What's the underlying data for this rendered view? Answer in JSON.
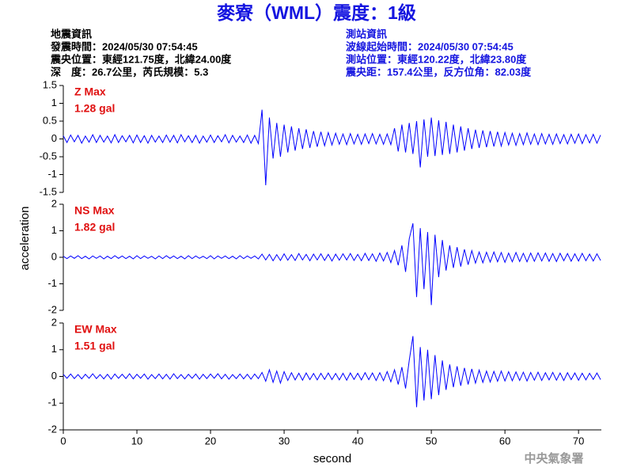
{
  "header": {
    "title": "麥寮（WML）震度：1級",
    "left": [
      "地震資訊",
      "發震時間：2024/05/30 07:54:45",
      "震央位置：東經121.75度，北緯24.00度",
      "深　度：26.7公里，芮氏規模：5.3"
    ],
    "right": [
      "測站資訊",
      "波線起始時間：2024/05/30 07:54:45",
      "測站位置：東經120.22度，北緯23.80度",
      "震央距：157.4公里，反方位角：82.03度"
    ]
  },
  "footer": "中央氣象署",
  "chart_data": [
    {
      "type": "line",
      "annotations": [
        "Z Max",
        "1.28 gal"
      ],
      "xlim": [
        0,
        73.1
      ],
      "ylim": [
        -1.5,
        1.5
      ],
      "yticks": [
        -1.5,
        -1,
        -0.5,
        0,
        0.5,
        1,
        1.5
      ],
      "x": [
        0,
        0.5,
        1,
        1.5,
        2,
        2.5,
        3,
        3.5,
        4,
        4.5,
        5,
        5.5,
        6,
        6.5,
        7,
        7.5,
        8,
        8.5,
        9,
        9.5,
        10,
        10.5,
        11,
        11.5,
        12,
        12.5,
        13,
        13.5,
        14,
        14.5,
        15,
        15.5,
        16,
        16.5,
        17,
        17.5,
        18,
        18.5,
        19,
        19.5,
        20,
        20.5,
        21,
        21.5,
        22,
        22.5,
        23,
        23.5,
        24,
        24.5,
        25,
        25.5,
        26,
        26.5,
        27,
        27.5,
        28,
        28.5,
        29,
        29.5,
        30,
        30.5,
        31,
        31.5,
        32,
        32.5,
        33,
        33.5,
        34,
        34.5,
        35,
        35.5,
        36,
        36.5,
        37,
        37.5,
        38,
        38.5,
        39,
        39.5,
        40,
        40.5,
        41,
        41.5,
        42,
        42.5,
        43,
        43.5,
        44,
        44.5,
        45,
        45.5,
        46,
        46.5,
        47,
        47.5,
        48,
        48.5,
        49,
        49.5,
        50,
        50.5,
        51,
        51.5,
        52,
        52.5,
        53,
        53.5,
        54,
        54.5,
        55,
        55.5,
        56,
        56.5,
        57,
        57.5,
        58,
        58.5,
        59,
        59.5,
        60,
        60.5,
        61,
        61.5,
        62,
        62.5,
        63,
        63.5,
        64,
        64.5,
        65,
        65.5,
        66,
        66.5,
        67,
        67.5,
        68,
        68.5,
        69,
        69.5,
        70,
        70.5,
        71,
        71.5,
        72,
        72.5,
        73
      ],
      "series": [
        {
          "color": "#0000ff",
          "values": [
            0.09,
            -0.1,
            0.11,
            -0.08,
            0.1,
            -0.12,
            0.08,
            -0.09,
            0.12,
            -0.1,
            0.1,
            -0.09,
            0.08,
            -0.11,
            0.12,
            -0.1,
            0.09,
            -0.08,
            0.1,
            -0.11,
            0.11,
            -0.1,
            0.09,
            -0.12,
            0.1,
            -0.09,
            0.08,
            -0.1,
            0.11,
            -0.09,
            0.1,
            -0.11,
            0.12,
            -0.08,
            0.09,
            -0.1,
            0.1,
            -0.12,
            0.08,
            -0.09,
            0.11,
            -0.1,
            0.09,
            -0.08,
            0.12,
            -0.11,
            0.1,
            -0.09,
            0.08,
            -0.1,
            0.11,
            -0.12,
            0.1,
            -0.13,
            0.82,
            -1.3,
            0.6,
            -0.55,
            0.45,
            -0.5,
            0.4,
            -0.38,
            0.35,
            -0.33,
            0.3,
            -0.28,
            0.27,
            -0.25,
            0.22,
            -0.22,
            0.2,
            -0.19,
            0.18,
            -0.17,
            0.16,
            -0.15,
            0.14,
            -0.16,
            0.15,
            -0.14,
            0.13,
            -0.15,
            0.14,
            -0.13,
            0.15,
            -0.14,
            0.13,
            -0.15,
            0.14,
            -0.16,
            0.3,
            -0.35,
            0.4,
            -0.38,
            0.45,
            -0.42,
            0.5,
            -0.8,
            0.55,
            -0.5,
            0.6,
            -0.48,
            0.52,
            -0.45,
            0.48,
            -0.42,
            0.4,
            -0.38,
            0.35,
            -0.33,
            0.3,
            -0.28,
            0.26,
            -0.25,
            0.24,
            -0.23,
            0.22,
            -0.21,
            0.2,
            -0.2,
            0.18,
            -0.17,
            0.16,
            -0.18,
            0.15,
            -0.16,
            0.17,
            -0.15,
            0.14,
            -0.16,
            0.15,
            -0.14,
            0.13,
            -0.15,
            0.14,
            -0.13,
            0.12,
            -0.14,
            0.13,
            -0.12,
            0.14,
            -0.13,
            0.12,
            -0.11,
            0.13,
            -0.12,
            0.11
          ]
        }
      ]
    },
    {
      "type": "line",
      "annotations": [
        "NS Max",
        "1.82 gal"
      ],
      "ylabel": "acceleration",
      "xlim": [
        0,
        73.1
      ],
      "ylim": [
        -2,
        2
      ],
      "yticks": [
        -2,
        -1,
        0,
        1,
        2
      ],
      "x": [
        0,
        0.5,
        1,
        1.5,
        2,
        2.5,
        3,
        3.5,
        4,
        4.5,
        5,
        5.5,
        6,
        6.5,
        7,
        7.5,
        8,
        8.5,
        9,
        9.5,
        10,
        10.5,
        11,
        11.5,
        12,
        12.5,
        13,
        13.5,
        14,
        14.5,
        15,
        15.5,
        16,
        16.5,
        17,
        17.5,
        18,
        18.5,
        19,
        19.5,
        20,
        20.5,
        21,
        21.5,
        22,
        22.5,
        23,
        23.5,
        24,
        24.5,
        25,
        25.5,
        26,
        26.5,
        27,
        27.5,
        28,
        28.5,
        29,
        29.5,
        30,
        30.5,
        31,
        31.5,
        32,
        32.5,
        33,
        33.5,
        34,
        34.5,
        35,
        35.5,
        36,
        36.5,
        37,
        37.5,
        38,
        38.5,
        39,
        39.5,
        40,
        40.5,
        41,
        41.5,
        42,
        42.5,
        43,
        43.5,
        44,
        44.5,
        45,
        45.5,
        46,
        46.5,
        47,
        47.5,
        48,
        48.5,
        49,
        49.5,
        50,
        50.5,
        51,
        51.5,
        52,
        52.5,
        53,
        53.5,
        54,
        54.5,
        55,
        55.5,
        56,
        56.5,
        57,
        57.5,
        58,
        58.5,
        59,
        59.5,
        60,
        60.5,
        61,
        61.5,
        62,
        62.5,
        63,
        63.5,
        64,
        64.5,
        65,
        65.5,
        66,
        66.5,
        67,
        67.5,
        68,
        68.5,
        69,
        69.5,
        70,
        70.5,
        71,
        71.5,
        72,
        72.5,
        73
      ],
      "series": [
        {
          "color": "#0000ff",
          "values": [
            0.04,
            -0.05,
            0.05,
            -0.04,
            0.06,
            -0.05,
            0.04,
            -0.06,
            0.05,
            -0.04,
            0.05,
            -0.06,
            0.04,
            -0.05,
            0.06,
            -0.04,
            0.05,
            -0.05,
            0.04,
            -0.06,
            0.06,
            -0.05,
            0.05,
            -0.04,
            0.04,
            -0.06,
            0.05,
            -0.05,
            0.06,
            -0.04,
            0.05,
            -0.05,
            0.04,
            -0.06,
            0.06,
            -0.05,
            0.05,
            -0.04,
            0.04,
            -0.05,
            0.06,
            -0.06,
            0.05,
            -0.04,
            0.05,
            -0.05,
            0.04,
            -0.06,
            0.06,
            -0.05,
            0.05,
            -0.04,
            0.05,
            -0.06,
            0.12,
            -0.1,
            0.11,
            -0.13,
            0.1,
            -0.12,
            0.13,
            -0.11,
            0.1,
            -0.12,
            0.14,
            -0.1,
            0.11,
            -0.13,
            0.12,
            -0.1,
            0.13,
            -0.12,
            0.11,
            -0.14,
            0.12,
            -0.11,
            0.13,
            -0.1,
            0.14,
            -0.12,
            0.11,
            -0.13,
            0.15,
            -0.12,
            0.13,
            -0.15,
            0.16,
            -0.14,
            0.18,
            -0.2,
            0.25,
            -0.3,
            0.45,
            -0.55,
            0.7,
            1.28,
            -1.5,
            1.1,
            -1.2,
            0.95,
            -1.8,
            0.85,
            -0.75,
            0.65,
            -0.5,
            0.45,
            -0.4,
            0.38,
            -0.35,
            0.3,
            -0.28,
            0.25,
            -0.22,
            0.2,
            -0.21,
            0.19,
            -0.18,
            0.2,
            -0.17,
            0.18,
            -0.19,
            0.16,
            -0.17,
            0.18,
            -0.16,
            0.15,
            -0.17,
            0.16,
            -0.15,
            0.17,
            -0.14,
            0.16,
            -0.15,
            0.14,
            -0.16,
            0.15,
            -0.13,
            0.14,
            -0.15,
            0.13,
            -0.14,
            0.15,
            -0.13,
            0.12,
            -0.14,
            0.13,
            -0.12
          ]
        }
      ]
    },
    {
      "type": "line",
      "annotations": [
        "EW Max",
        "1.51 gal"
      ],
      "xlabel": "second",
      "xlim": [
        0,
        73.1
      ],
      "ylim": [
        -2,
        2
      ],
      "yticks": [
        -2,
        -1,
        0,
        1,
        2
      ],
      "xticks": [
        0,
        10,
        20,
        30,
        40,
        50,
        60,
        70
      ],
      "x": [
        0,
        0.5,
        1,
        1.5,
        2,
        2.5,
        3,
        3.5,
        4,
        4.5,
        5,
        5.5,
        6,
        6.5,
        7,
        7.5,
        8,
        8.5,
        9,
        9.5,
        10,
        10.5,
        11,
        11.5,
        12,
        12.5,
        13,
        13.5,
        14,
        14.5,
        15,
        15.5,
        16,
        16.5,
        17,
        17.5,
        18,
        18.5,
        19,
        19.5,
        20,
        20.5,
        21,
        21.5,
        22,
        22.5,
        23,
        23.5,
        24,
        24.5,
        25,
        25.5,
        26,
        26.5,
        27,
        27.5,
        28,
        28.5,
        29,
        29.5,
        30,
        30.5,
        31,
        31.5,
        32,
        32.5,
        33,
        33.5,
        34,
        34.5,
        35,
        35.5,
        36,
        36.5,
        37,
        37.5,
        38,
        38.5,
        39,
        39.5,
        40,
        40.5,
        41,
        41.5,
        42,
        42.5,
        43,
        43.5,
        44,
        44.5,
        45,
        45.5,
        46,
        46.5,
        47,
        47.5,
        48,
        48.5,
        49,
        49.5,
        50,
        50.5,
        51,
        51.5,
        52,
        52.5,
        53,
        53.5,
        54,
        54.5,
        55,
        55.5,
        56,
        56.5,
        57,
        57.5,
        58,
        58.5,
        59,
        59.5,
        60,
        60.5,
        61,
        61.5,
        62,
        62.5,
        63,
        63.5,
        64,
        64.5,
        65,
        65.5,
        66,
        66.5,
        67,
        67.5,
        68,
        68.5,
        69,
        69.5,
        70,
        70.5,
        71,
        71.5,
        72,
        72.5,
        73
      ],
      "series": [
        {
          "color": "#0000ff",
          "values": [
            0.08,
            -0.07,
            0.09,
            -0.08,
            0.07,
            -0.09,
            0.08,
            -0.07,
            0.1,
            -0.08,
            0.07,
            -0.09,
            0.08,
            -0.1,
            0.09,
            -0.07,
            0.08,
            -0.08,
            0.1,
            -0.09,
            0.08,
            -0.07,
            0.09,
            -0.1,
            0.07,
            -0.08,
            0.09,
            -0.09,
            0.08,
            -0.1,
            0.1,
            -0.08,
            0.07,
            -0.09,
            0.08,
            -0.07,
            0.09,
            -0.1,
            0.08,
            -0.08,
            0.09,
            -0.07,
            0.1,
            -0.09,
            0.08,
            -0.1,
            0.07,
            -0.08,
            0.09,
            -0.09,
            0.08,
            -0.1,
            0.09,
            -0.08,
            0.15,
            -0.18,
            0.25,
            -0.22,
            0.2,
            -0.25,
            0.18,
            -0.15,
            0.14,
            -0.13,
            0.12,
            -0.14,
            0.13,
            -0.12,
            0.11,
            -0.13,
            0.12,
            -0.11,
            0.13,
            -0.12,
            0.11,
            -0.13,
            0.12,
            -0.14,
            0.13,
            -0.11,
            0.12,
            -0.13,
            0.14,
            -0.12,
            0.13,
            -0.15,
            0.14,
            -0.16,
            0.18,
            -0.2,
            0.25,
            -0.3,
            0.35,
            -0.45,
            0.6,
            1.51,
            -1.15,
            1.1,
            -0.9,
            1.0,
            -0.85,
            0.8,
            -0.7,
            0.6,
            -0.5,
            0.45,
            -0.4,
            0.38,
            -0.35,
            0.32,
            -0.3,
            0.28,
            -0.25,
            0.24,
            -0.22,
            0.2,
            -0.21,
            0.19,
            -0.18,
            0.2,
            -0.17,
            0.18,
            -0.16,
            0.17,
            -0.15,
            0.16,
            -0.17,
            0.15,
            -0.14,
            0.16,
            -0.15,
            0.14,
            -0.13,
            0.15,
            -0.14,
            0.13,
            -0.15,
            0.14,
            -0.12,
            0.13,
            -0.14,
            0.12,
            -0.13,
            0.12,
            -0.11,
            0.13,
            -0.12
          ]
        }
      ]
    }
  ]
}
